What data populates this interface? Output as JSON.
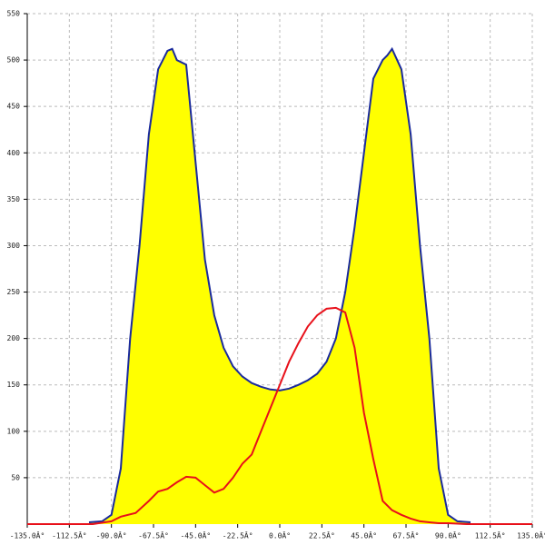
{
  "chart_data": {
    "type": "area-line",
    "xlim": [
      -135,
      135
    ],
    "ylim": [
      0,
      550
    ],
    "xticks": [
      {
        "value": -135,
        "label": "-135.0Â°"
      },
      {
        "value": -112.5,
        "label": "-112.5Â°"
      },
      {
        "value": -90,
        "label": "-90.0Â°"
      },
      {
        "value": -67.5,
        "label": "-67.5Â°"
      },
      {
        "value": -45,
        "label": "-45.0Â°"
      },
      {
        "value": -22.5,
        "label": "-22.5Â°"
      },
      {
        "value": 0,
        "label": "0.0Â°"
      },
      {
        "value": 22.5,
        "label": "22.5Â°"
      },
      {
        "value": 45,
        "label": "45.0Â°"
      },
      {
        "value": 67.5,
        "label": "67.5Â°"
      },
      {
        "value": 90,
        "label": "90.0Â°"
      },
      {
        "value": 112.5,
        "label": "112.5Â°"
      },
      {
        "value": 135,
        "label": "135.0Â°"
      }
    ],
    "yticks": [
      50,
      100,
      150,
      200,
      250,
      300,
      350,
      400,
      450,
      500,
      550
    ],
    "grid": true,
    "series": [
      {
        "kind": "area",
        "color": "#1a2a9c",
        "fill": "#ffff00",
        "x": [
          -102,
          -95,
          -90,
          -85,
          -80,
          -75,
          -70,
          -65,
          -60,
          -57.5,
          -55,
          -50,
          -45,
          -40,
          -35,
          -30,
          -25,
          -20,
          -15,
          -10,
          -5,
          0,
          5,
          10,
          15,
          20,
          25,
          30,
          35,
          40,
          45,
          50,
          55,
          57.5,
          60,
          65,
          70,
          75,
          80,
          85,
          90,
          95,
          102
        ],
        "values": [
          2,
          3,
          10,
          60,
          200,
          300,
          420,
          490,
          510,
          512,
          500,
          495,
          390,
          285,
          225,
          190,
          170,
          159,
          152,
          148,
          145,
          144,
          146,
          150,
          155,
          162,
          175,
          200,
          250,
          320,
          400,
          480,
          500,
          505,
          512,
          490,
          420,
          300,
          200,
          60,
          10,
          3,
          2
        ]
      },
      {
        "kind": "line",
        "color": "#e8101a",
        "x": [
          -135,
          -100,
          -90,
          -85,
          -77,
          -70,
          -65,
          -60,
          -55,
          -50,
          -45,
          -40,
          -35,
          -30,
          -25,
          -20,
          -15,
          -10,
          -5,
          0,
          5,
          10,
          15,
          20,
          25,
          30,
          35,
          40,
          45,
          50,
          55,
          60,
          65,
          70,
          75,
          80,
          85,
          90,
          100,
          135
        ],
        "values": [
          0,
          0,
          3,
          8,
          12,
          25,
          35,
          38,
          45,
          51,
          50,
          42,
          34,
          38,
          50,
          65,
          75,
          100,
          125,
          150,
          175,
          195,
          213,
          225,
          232,
          233,
          228,
          190,
          120,
          70,
          25,
          15,
          10,
          6,
          3,
          2,
          1,
          1,
          0,
          0
        ]
      }
    ]
  }
}
